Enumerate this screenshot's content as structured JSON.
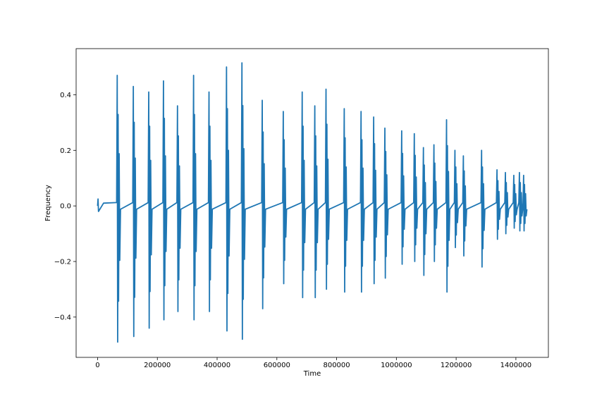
{
  "chart_data": {
    "type": "line",
    "xlabel": "Time",
    "ylabel": "Frequency",
    "color": "#1f77b4",
    "xlim": [
      -71845,
      1508745
    ],
    "ylim": [
      -0.545,
      0.566
    ],
    "xticks": [
      0,
      200000,
      400000,
      600000,
      800000,
      1000000,
      1200000,
      1400000
    ],
    "yticks": [
      {
        "value": -0.4,
        "label": "−0.4"
      },
      {
        "value": -0.2,
        "label": "−0.2"
      },
      {
        "value": 0,
        "label": "0.0"
      },
      0.2,
      0.4
    ],
    "x": [
      0,
      1500,
      3000,
      20000,
      63700,
      65700,
      67200,
      68700,
      70200,
      72200,
      74200,
      76700,
      117600,
      119600,
      121100,
      122600,
      124100,
      126100,
      128100,
      130600,
      169200,
      171200,
      172700,
      174200,
      175700,
      177700,
      179700,
      182200,
      218500,
      220500,
      222000,
      223500,
      225000,
      227000,
      229000,
      231500,
      265400,
      267400,
      268900,
      270400,
      271900,
      273900,
      275900,
      278400,
      319300,
      321300,
      322800,
      324300,
      325800,
      327800,
      329800,
      332300,
      370900,
      372900,
      374400,
      375900,
      377400,
      379400,
      381400,
      383900,
      429500,
      431500,
      433000,
      434500,
      436000,
      438000,
      440000,
      442500,
      481100,
      483100,
      484600,
      486100,
      487600,
      489600,
      491600,
      494100,
      549100,
      551100,
      552600,
      554100,
      555600,
      557600,
      559600,
      562100,
      619500,
      621500,
      623000,
      624500,
      626000,
      628000,
      630000,
      632500,
      682800,
      684800,
      686300,
      687800,
      689300,
      691300,
      693300,
      695800,
      725000,
      727000,
      728500,
      730000,
      731500,
      733500,
      735500,
      738000,
      762500,
      764500,
      766000,
      767500,
      769000,
      771000,
      773000,
      775500,
      823500,
      825500,
      827000,
      828500,
      830000,
      832000,
      834000,
      836500,
      879800,
      881800,
      883300,
      884800,
      886300,
      888300,
      890300,
      892800,
      922000,
      924000,
      925500,
      927000,
      928500,
      930500,
      932500,
      935000,
      959500,
      961500,
      963000,
      964500,
      966000,
      968000,
      970000,
      972500,
      1015800,
      1017800,
      1019300,
      1020800,
      1022300,
      1024300,
      1026300,
      1028800,
      1058000,
      1060000,
      1061500,
      1063000,
      1064500,
      1066500,
      1068500,
      1071000,
      1088500,
      1090500,
      1092000,
      1093500,
      1095000,
      1097000,
      1099000,
      1101500,
      1123700,
      1125700,
      1127200,
      1128700,
      1130200,
      1132200,
      1134200,
      1136700,
      1165900,
      1167900,
      1169400,
      1170900,
      1172400,
      1174400,
      1176400,
      1178900,
      1194000,
      1196000,
      1197500,
      1199000,
      1200500,
      1202500,
      1204500,
      1207000,
      1222200,
      1224200,
      1225700,
      1227200,
      1228700,
      1230700,
      1232700,
      1235200,
      1283200,
      1285200,
      1286700,
      1288200,
      1289700,
      1291700,
      1293700,
      1296200,
      1334800,
      1336800,
      1338300,
      1339800,
      1341300,
      1343300,
      1345300,
      1347800,
      1362900,
      1364900,
      1366400,
      1367900,
      1369400,
      1371400,
      1373400,
      1375900,
      1391000,
      1393000,
      1394500,
      1396000,
      1397500,
      1399500,
      1401500,
      1404000,
      1409800,
      1411800,
      1413300,
      1414800,
      1416300,
      1418300,
      1420300,
      1422800,
      1423900,
      1425900,
      1427400,
      1428900,
      1430400,
      1432400,
      1434400,
      1436900
    ],
    "values": [
      0,
      0.025,
      -0.02,
      0.01,
      0.012,
      0.47,
      -0.49,
      0.329,
      -0.343,
      0.188,
      -0.196,
      -0.012,
      0.012,
      0.43,
      -0.47,
      0.301,
      -0.329,
      0.172,
      -0.188,
      -0.012,
      0.012,
      0.41,
      -0.44,
      0.287,
      -0.308,
      0.164,
      -0.176,
      -0.012,
      0.012,
      0.45,
      -0.41,
      0.315,
      -0.287,
      0.18,
      -0.164,
      -0.012,
      0.012,
      0.36,
      -0.38,
      0.252,
      -0.266,
      0.144,
      -0.152,
      -0.012,
      0.012,
      0.47,
      -0.41,
      0.329,
      -0.287,
      0.188,
      -0.164,
      -0.012,
      0.012,
      0.41,
      -0.38,
      0.287,
      -0.266,
      0.164,
      -0.152,
      -0.012,
      0.012,
      0.5,
      -0.45,
      0.35,
      -0.315,
      0.2,
      -0.18,
      -0.012,
      0.012,
      0.515,
      -0.48,
      0.361,
      -0.336,
      0.206,
      -0.192,
      -0.012,
      0.012,
      0.38,
      -0.37,
      0.266,
      -0.259,
      0.152,
      -0.148,
      -0.012,
      0.012,
      0.34,
      -0.28,
      0.238,
      -0.196,
      0.136,
      -0.112,
      -0.012,
      0.012,
      0.41,
      -0.33,
      0.287,
      -0.231,
      0.164,
      -0.132,
      -0.012,
      0.012,
      0.36,
      -0.33,
      0.252,
      -0.231,
      0.144,
      -0.132,
      -0.012,
      0.012,
      0.42,
      -0.3,
      0.294,
      -0.21,
      0.168,
      -0.12,
      -0.012,
      0.012,
      0.35,
      -0.31,
      0.245,
      -0.217,
      0.14,
      -0.124,
      -0.012,
      0.012,
      0.34,
      -0.31,
      0.238,
      -0.217,
      0.136,
      -0.124,
      -0.012,
      0.012,
      0.32,
      -0.28,
      0.224,
      -0.196,
      0.128,
      -0.112,
      -0.012,
      0.012,
      0.28,
      -0.26,
      0.196,
      -0.182,
      0.112,
      -0.104,
      -0.012,
      0.012,
      0.27,
      -0.21,
      0.189,
      -0.147,
      0.108,
      -0.084,
      -0.012,
      0.012,
      0.26,
      -0.2,
      0.182,
      -0.14,
      0.104,
      -0.08,
      -0.012,
      0.012,
      0.21,
      -0.25,
      0.147,
      -0.175,
      0.084,
      -0.1,
      -0.012,
      0.012,
      0.22,
      -0.2,
      0.154,
      -0.14,
      0.088,
      -0.08,
      -0.012,
      0.012,
      0.31,
      -0.31,
      0.217,
      -0.217,
      0.124,
      -0.124,
      -0.012,
      0.012,
      0.2,
      -0.15,
      0.14,
      -0.105,
      0.08,
      -0.06,
      -0.012,
      0.012,
      0.18,
      -0.18,
      0.126,
      -0.126,
      0.072,
      -0.072,
      -0.012,
      0.012,
      0.2,
      -0.22,
      0.14,
      -0.154,
      0.08,
      -0.088,
      -0.012,
      0.012,
      0.13,
      -0.12,
      0.091,
      -0.084,
      0.052,
      -0.048,
      -0.012,
      0.012,
      0.12,
      -0.1,
      0.084,
      -0.07,
      0.048,
      -0.04,
      -0.012,
      0.012,
      0.11,
      -0.08,
      0.077,
      -0.056,
      0.044,
      -0.032,
      -0.012,
      0.012,
      0.12,
      -0.09,
      0.084,
      -0.063,
      0.048,
      -0.036,
      -0.012,
      0.012,
      0.11,
      -0.09,
      0.077,
      -0.063,
      0.044,
      -0.036,
      -0.012
    ]
  }
}
